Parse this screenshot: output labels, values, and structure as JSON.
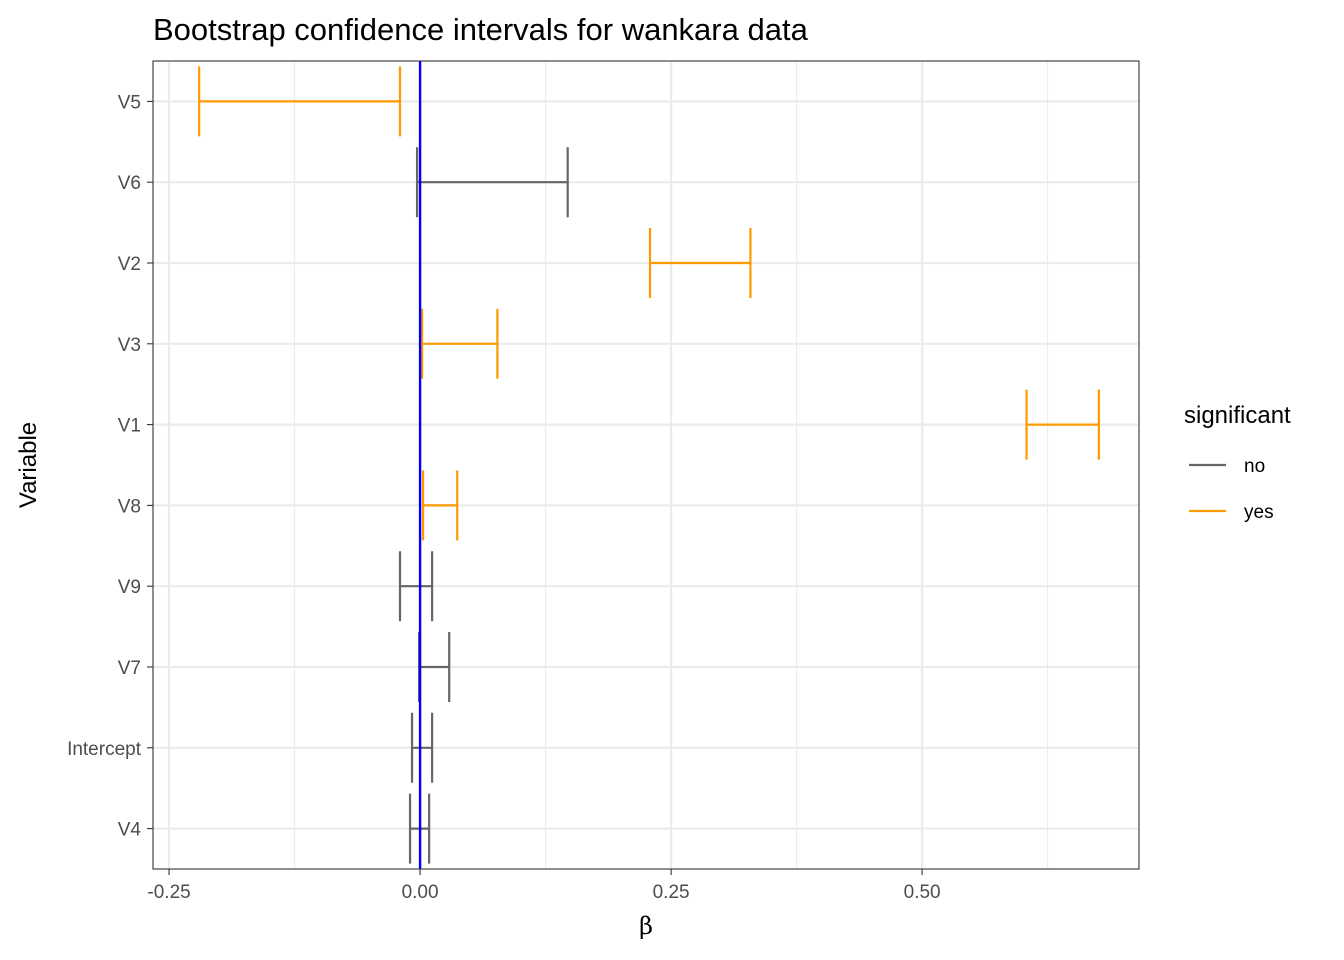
{
  "chart_data": {
    "type": "errorbar",
    "orientation": "horizontal",
    "title": "Bootstrap confidence intervals for wankara data",
    "xlabel": "β",
    "ylabel": "Variable",
    "xlim": [
      -0.266,
      0.716
    ],
    "x_ticks": [
      -0.25,
      0.0,
      0.25,
      0.5
    ],
    "x_tick_labels": [
      "-0.25",
      "0.00",
      "0.25",
      "0.50"
    ],
    "x_minor_ticks": [
      -0.125,
      0.125,
      0.375,
      0.625
    ],
    "categories": [
      "V4",
      "Intercept",
      "V7",
      "V9",
      "V8",
      "V1",
      "V3",
      "V2",
      "V6",
      "V5"
    ],
    "intervals": [
      {
        "variable": "V5",
        "lower": -0.22,
        "upper": -0.02,
        "significant": "yes"
      },
      {
        "variable": "V6",
        "lower": -0.003,
        "upper": 0.147,
        "significant": "no"
      },
      {
        "variable": "V2",
        "lower": 0.229,
        "upper": 0.329,
        "significant": "yes"
      },
      {
        "variable": "V3",
        "lower": 0.002,
        "upper": 0.077,
        "significant": "yes"
      },
      {
        "variable": "V1",
        "lower": 0.604,
        "upper": 0.676,
        "significant": "yes"
      },
      {
        "variable": "V8",
        "lower": 0.003,
        "upper": 0.037,
        "significant": "yes"
      },
      {
        "variable": "V9",
        "lower": -0.02,
        "upper": 0.012,
        "significant": "no"
      },
      {
        "variable": "V7",
        "lower": -0.001,
        "upper": 0.029,
        "significant": "no"
      },
      {
        "variable": "Intercept",
        "lower": -0.008,
        "upper": 0.012,
        "significant": "no"
      },
      {
        "variable": "V4",
        "lower": -0.01,
        "upper": 0.009,
        "significant": "no"
      }
    ],
    "reference_line": {
      "x": 0,
      "color": "#0000ff"
    },
    "legend": {
      "title": "significant",
      "position": "right",
      "entries": [
        {
          "label": "no",
          "color": "#666666"
        },
        {
          "label": "yes",
          "color": "#ff9900"
        }
      ]
    },
    "grid": true,
    "colors": {
      "no": "#666666",
      "yes": "#ff9900",
      "grid": "#ebebeb",
      "border": "#333333"
    }
  }
}
